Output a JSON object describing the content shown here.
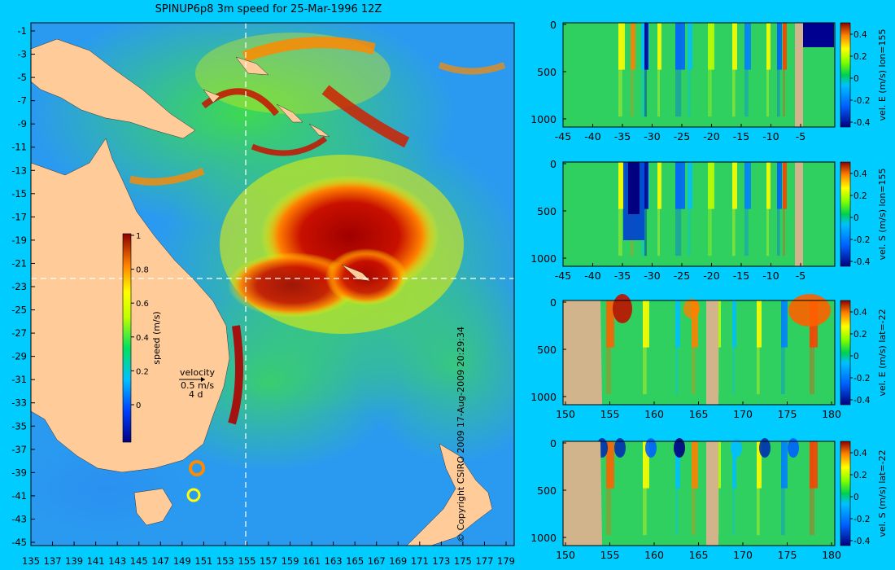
{
  "title": "SPINUP6p8 3m speed for 25-Mar-1996 12Z",
  "copyright": "© Copyright CSIRO 2009   17-Aug-2009 20:29:34",
  "map": {
    "lat_labels": [
      "-1",
      "-3",
      "-5",
      "-7",
      "-9",
      "-11",
      "-13",
      "-15",
      "-17",
      "-19",
      "-21",
      "-23",
      "-25",
      "-27",
      "-29",
      "-31",
      "-33",
      "-35",
      "-37",
      "-39",
      "-41",
      "-43",
      "-45"
    ],
    "lon_labels": [
      "135",
      "137",
      "139",
      "141",
      "143",
      "145",
      "147",
      "149",
      "151",
      "153",
      "155",
      "157",
      "159",
      "161",
      "163",
      "165",
      "167",
      "169",
      "171",
      "173",
      "175",
      "177",
      "179"
    ],
    "colorbar": {
      "label": "speed (m/s)",
      "ticks": [
        "1",
        "0.8",
        "0.6",
        "0.4",
        "0.2",
        "0"
      ]
    },
    "velocity_key": {
      "label": "velocity",
      "speed": "0.5 m/s",
      "time": "4 d"
    },
    "colors": {
      "land": "#ffcc99",
      "background": "#00ccff",
      "crosshair": "#ffffff"
    }
  },
  "panels": [
    {
      "ylabel": "vel. E (m/s) lon=155",
      "y_ticks": [
        "0",
        "500",
        "1000"
      ],
      "x_ticks": [
        "-45",
        "-40",
        "-35",
        "-30",
        "-25",
        "-20",
        "-15",
        "-10",
        "-5"
      ],
      "cbar_ticks": [
        "0.4",
        "0.2",
        "0",
        "-0.2",
        "-0.4"
      ]
    },
    {
      "ylabel": "vel. S (m/s) lon=155",
      "y_ticks": [
        "0",
        "500",
        "1000"
      ],
      "x_ticks": [
        "-45",
        "-40",
        "-35",
        "-30",
        "-25",
        "-20",
        "-15",
        "-10",
        "-5"
      ],
      "cbar_ticks": [
        "0.4",
        "0.2",
        "0",
        "-0.2",
        "-0.4"
      ]
    },
    {
      "ylabel": "vel. E (m/s) lat=-22",
      "y_ticks": [
        "0",
        "500",
        "1000"
      ],
      "x_ticks": [
        "150",
        "155",
        "160",
        "165",
        "170",
        "175",
        "180"
      ],
      "cbar_ticks": [
        "0.4",
        "0.2",
        "0",
        "-0.2",
        "-0.4"
      ]
    },
    {
      "ylabel": "vel. S (m/s) lat=-22",
      "y_ticks": [
        "0",
        "500",
        "1000"
      ],
      "x_ticks": [
        "150",
        "155",
        "160",
        "165",
        "170",
        "175",
        "180"
      ],
      "cbar_ticks": [
        "0.4",
        "0.2",
        "0",
        "-0.2",
        "-0.4"
      ]
    }
  ]
}
